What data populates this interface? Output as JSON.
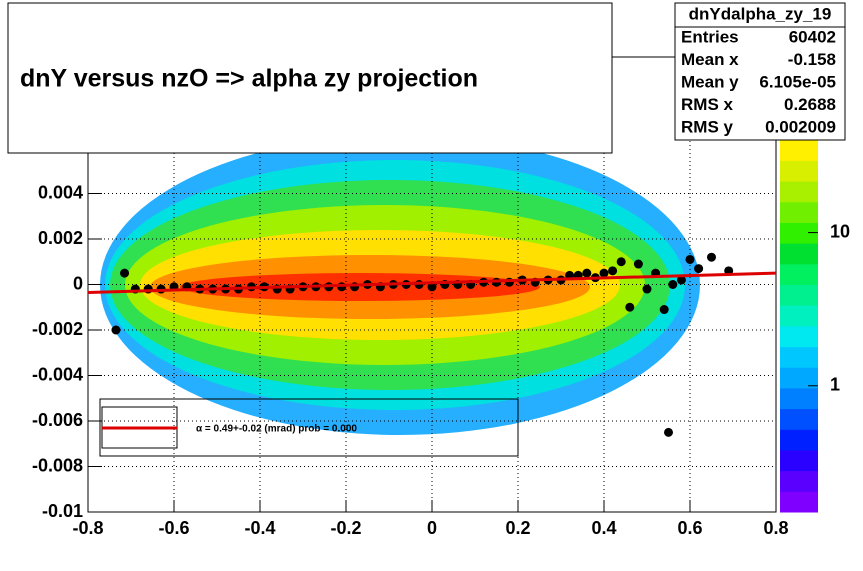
{
  "chart_data": {
    "type": "scatter",
    "title": "dnY versus  nzO        =>  alpha zy projection",
    "xlim": [
      -0.8,
      0.8
    ],
    "xticks": [
      -0.8,
      -0.6,
      -0.4,
      -0.2,
      0,
      0.2,
      0.4,
      0.6,
      0.8
    ],
    "ylim": [
      -0.01,
      0.01
    ],
    "yticks": [
      -0.01,
      -0.008,
      -0.006,
      -0.004,
      -0.002,
      0,
      0.002,
      0.004
    ],
    "grid": true,
    "zlim": [
      0.15,
      140
    ],
    "zticks": [
      1,
      10
    ],
    "zlog": true,
    "series": [
      {
        "name": "profile",
        "color": "#000000",
        "x": [
          -0.735,
          -0.715,
          -0.69,
          -0.66,
          -0.63,
          -0.6,
          -0.57,
          -0.54,
          -0.51,
          -0.48,
          -0.45,
          -0.42,
          -0.39,
          -0.36,
          -0.33,
          -0.3,
          -0.27,
          -0.24,
          -0.21,
          -0.18,
          -0.15,
          -0.12,
          -0.09,
          -0.06,
          -0.03,
          0,
          0.03,
          0.06,
          0.09,
          0.12,
          0.15,
          0.18,
          0.21,
          0.24,
          0.27,
          0.3,
          0.32,
          0.34,
          0.36,
          0.38,
          0.4,
          0.42,
          0.44,
          0.46,
          0.48,
          0.5,
          0.52,
          0.54,
          0.55,
          0.56,
          0.58,
          0.6,
          0.62,
          0.65,
          0.69
        ],
        "values": [
          -0.002,
          0.0005,
          -0.0002,
          -0.0002,
          -0.0002,
          -0.0001,
          -0.0001,
          -0.0002,
          -0.0002,
          -0.0002,
          -0.0002,
          -0.0001,
          -0.0001,
          -0.0002,
          -0.0002,
          -0.0001,
          -0.0001,
          -0.0001,
          -0.0001,
          -0.0001,
          0,
          -0.0001,
          0,
          0,
          0,
          -0.0001,
          0,
          0,
          0,
          0.0001,
          0.0001,
          0.0001,
          0.0002,
          0.0001,
          0.0002,
          0.0002,
          0.0004,
          0.0004,
          0.0005,
          0.0003,
          0.0005,
          0.0006,
          0.001,
          -0.001,
          0.0009,
          -0.0002,
          0.0005,
          -0.0011,
          -0.0065,
          0,
          0.0002,
          0.0011,
          0.0007,
          0.0012,
          0.0006
        ]
      },
      {
        "name": "fit",
        "color": "#dd0000",
        "x": [
          -0.8,
          0.8
        ],
        "values": [
          -0.00035,
          0.0005
        ]
      }
    ],
    "legend_text": "α =   0.49+-0.02 (mrad) prob = 0.000",
    "stats": {
      "name": "dnYdalpha_zy_19",
      "rows": [
        [
          "Entries",
          "60402"
        ],
        [
          "Mean x",
          "-0.158"
        ],
        [
          "Mean y",
          "6.105e-05"
        ],
        [
          "RMS x",
          "0.2688"
        ],
        [
          "RMS y",
          "0.002009"
        ]
      ]
    }
  }
}
